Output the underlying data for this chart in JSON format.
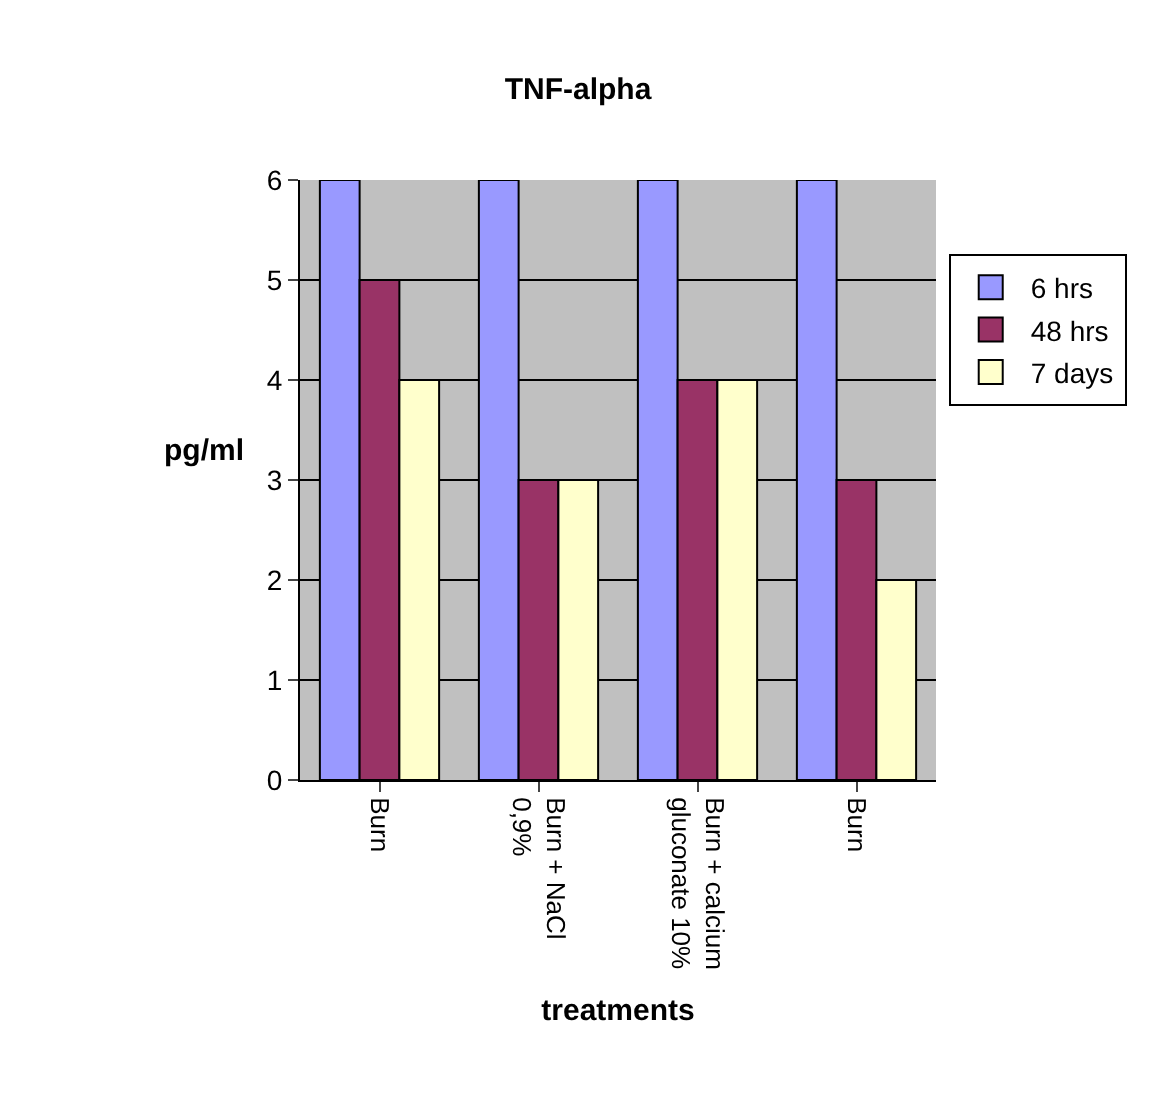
{
  "chart_data": {
    "type": "bar",
    "title": "TNF-alpha",
    "xlabel": "treatments",
    "ylabel": "pg/ml",
    "categories": [
      "Burn",
      "Burn + NaCl  0,9%",
      "Burn + calcium gluconate 10%",
      "Burn"
    ],
    "series": [
      {
        "name": "6 hrs",
        "color": "#9999ff",
        "values": [
          6,
          6,
          6,
          6
        ]
      },
      {
        "name": "48 hrs",
        "color": "#993366",
        "values": [
          5,
          3,
          4,
          3
        ]
      },
      {
        "name": "7 days",
        "color": "#ffffcc",
        "values": [
          4,
          3,
          4,
          2
        ]
      }
    ],
    "ylim": [
      0,
      6
    ],
    "yticks": [
      0,
      1,
      2,
      3,
      4,
      5,
      6
    ],
    "grid": "y",
    "legend": "right"
  }
}
